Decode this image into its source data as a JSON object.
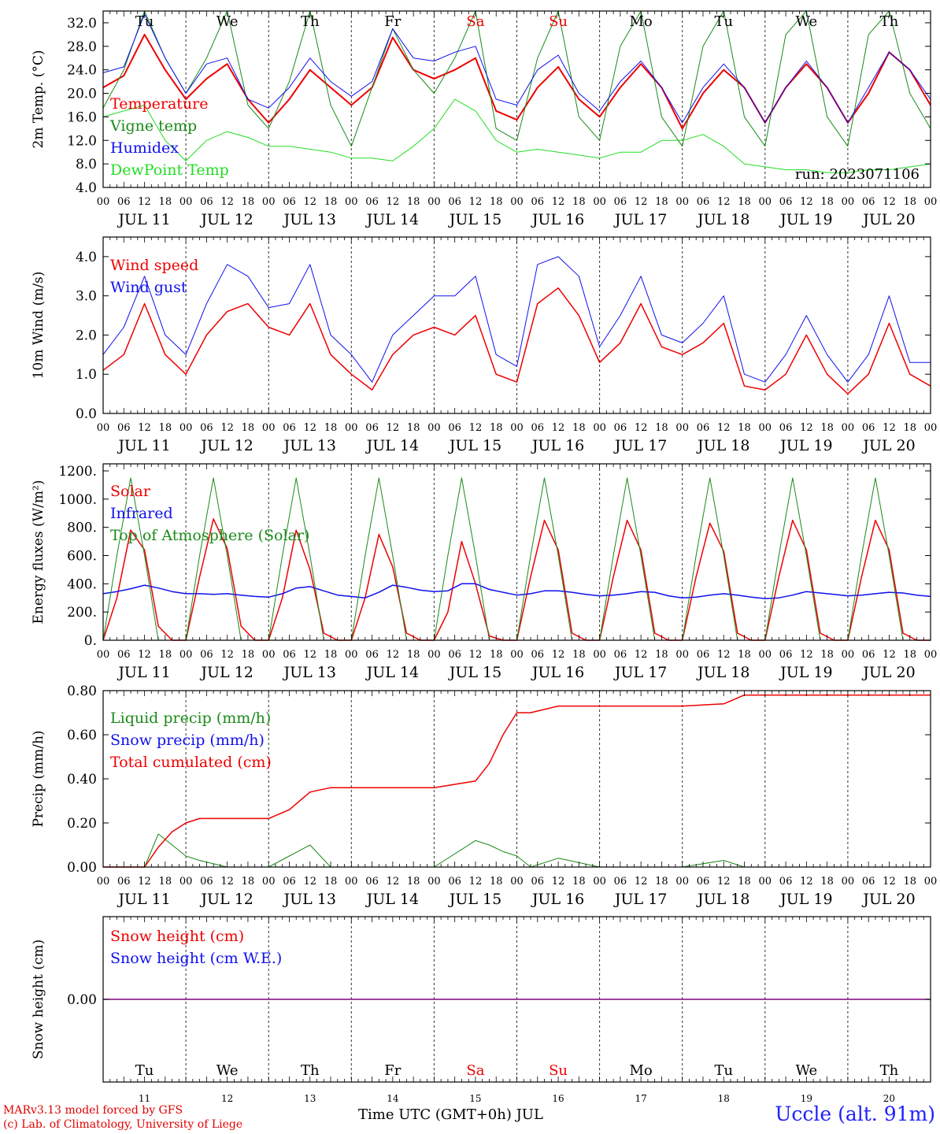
{
  "footer": {
    "model_line": "MARv3.13 model forced by GFS",
    "credit_line": "(c) Lab. of Climatology, University of Liege",
    "time_label": "Time UTC (GMT+0h) JUL",
    "station": "Uccle (alt. 91m)"
  },
  "colors": {
    "red": "#ee0000",
    "green": "#1a8a1a",
    "blue": "#1010ee",
    "lightgreen": "#22dd22",
    "purple": "#800080"
  },
  "days": [
    {
      "label": "JUL 11",
      "wd": "Tu",
      "num": "11",
      "weekend": false
    },
    {
      "label": "JUL 12",
      "wd": "We",
      "num": "12",
      "weekend": false
    },
    {
      "label": "JUL 13",
      "wd": "Th",
      "num": "13",
      "weekend": false
    },
    {
      "label": "JUL 14",
      "wd": "Fr",
      "num": "14",
      "weekend": false
    },
    {
      "label": "JUL 15",
      "wd": "Sa",
      "num": "15",
      "weekend": true
    },
    {
      "label": "JUL 16",
      "wd": "Su",
      "num": "16",
      "weekend": true
    },
    {
      "label": "JUL 17",
      "wd": "Mo",
      "num": "17",
      "weekend": false
    },
    {
      "label": "JUL 18",
      "wd": "Tu",
      "num": "18",
      "weekend": false
    },
    {
      "label": "JUL 19",
      "wd": "We",
      "num": "19",
      "weekend": false
    },
    {
      "label": "JUL 20",
      "wd": "Th",
      "num": "20",
      "weekend": false
    }
  ],
  "hour_ticks": [
    "00",
    "06",
    "12",
    "18"
  ],
  "chart_data": [
    {
      "type": "line",
      "ylabel": "2m Temp. (°C)",
      "ylim": [
        4,
        34
      ],
      "yticks": [
        "4.0",
        "8.0",
        "12.0",
        "16.0",
        "20.0",
        "24.0",
        "28.0",
        "32.0"
      ],
      "ytick_values": [
        4,
        8,
        12,
        16,
        20,
        24,
        28,
        32
      ],
      "run_label": "run: 2023071106",
      "show_weekdays": true,
      "x": [
        0,
        6,
        12,
        18,
        24,
        30,
        36,
        42,
        48,
        54,
        60,
        66,
        72,
        78,
        84,
        90,
        96,
        102,
        108,
        114,
        120,
        126,
        132,
        138,
        144,
        150,
        156,
        162,
        168,
        174,
        180,
        186,
        192,
        198,
        204,
        210,
        216,
        222,
        228,
        234,
        240
      ],
      "series": [
        {
          "name": "Temperature",
          "color": "red",
          "width": 2,
          "values": [
            21,
            23,
            30,
            24,
            19,
            22.5,
            25,
            19,
            15,
            19,
            24,
            21,
            18,
            21,
            29.5,
            24,
            22.5,
            24,
            26,
            17,
            15.5,
            21,
            24.5,
            19,
            16,
            21,
            25,
            21,
            14,
            20,
            24,
            21,
            15,
            21,
            25,
            21,
            15,
            20,
            27,
            24,
            18
          ]
        },
        {
          "name": "Vigne temp",
          "color": "green",
          "width": 1,
          "values": [
            17.5,
            24,
            34,
            26,
            20,
            26,
            34,
            18,
            14,
            22,
            34,
            18,
            11,
            21,
            31,
            24,
            20,
            26,
            34,
            14,
            12,
            26,
            34,
            16,
            12,
            28,
            34,
            16,
            11,
            28,
            34,
            16,
            11,
            30,
            34,
            16,
            11,
            30,
            34,
            20,
            14
          ]
        },
        {
          "name": "Humidex",
          "color": "blue",
          "width": 1,
          "values": [
            23.5,
            24.5,
            33.5,
            26,
            20,
            25,
            26,
            19,
            17.5,
            21,
            26,
            22,
            19.5,
            22,
            31,
            26,
            25.5,
            27,
            28,
            19,
            18,
            24,
            26.5,
            20,
            17,
            22,
            25.5,
            21,
            15,
            21,
            25,
            21,
            15,
            21,
            25.5,
            21,
            15,
            21,
            27,
            24,
            19
          ]
        },
        {
          "name": "DewPoint Temp",
          "color": "lightgreen",
          "width": 1,
          "values": [
            16,
            17,
            18,
            12,
            8.5,
            12,
            13.5,
            12.5,
            11,
            11,
            10.5,
            10,
            9,
            9,
            8.5,
            11,
            14,
            19,
            17,
            12,
            10,
            10.5,
            10,
            9.5,
            9,
            10,
            10,
            12,
            12,
            13,
            11,
            8,
            7.5,
            7,
            7,
            6.5,
            6.5,
            7,
            7,
            7.5,
            8
          ]
        }
      ]
    },
    {
      "type": "line",
      "ylabel": "10m Wind (m/s)",
      "ylim": [
        0,
        4.5
      ],
      "yticks": [
        "0.0",
        "1.0",
        "2.0",
        "3.0",
        "4.0"
      ],
      "ytick_values": [
        0,
        1,
        2,
        3,
        4
      ],
      "show_weekdays": false,
      "x": [
        0,
        6,
        12,
        18,
        24,
        30,
        36,
        42,
        48,
        54,
        60,
        66,
        72,
        78,
        84,
        90,
        96,
        102,
        108,
        114,
        120,
        126,
        132,
        138,
        144,
        150,
        156,
        162,
        168,
        174,
        180,
        186,
        192,
        198,
        204,
        210,
        216,
        222,
        228,
        234,
        240
      ],
      "series": [
        {
          "name": "Wind speed",
          "color": "red",
          "width": 1.5,
          "values": [
            1.1,
            1.5,
            2.8,
            1.5,
            1.0,
            2.0,
            2.6,
            2.8,
            2.2,
            2.0,
            2.8,
            1.5,
            1.0,
            0.6,
            1.5,
            2.0,
            2.2,
            2.0,
            2.5,
            1.0,
            0.8,
            2.8,
            3.2,
            2.5,
            1.3,
            1.8,
            2.8,
            1.7,
            1.5,
            1.8,
            2.3,
            0.7,
            0.6,
            1.0,
            2.0,
            1.0,
            0.5,
            1.0,
            2.3,
            1.0,
            0.7
          ]
        },
        {
          "name": "Wind gust",
          "color": "blue",
          "width": 1,
          "values": [
            1.5,
            2.2,
            3.5,
            2.0,
            1.5,
            2.8,
            3.8,
            3.5,
            2.7,
            2.8,
            3.8,
            2.0,
            1.5,
            0.8,
            2.0,
            2.5,
            3.0,
            3.0,
            3.5,
            1.5,
            1.2,
            3.8,
            4.0,
            3.5,
            1.7,
            2.5,
            3.5,
            2.0,
            1.8,
            2.3,
            3.0,
            1.0,
            0.8,
            1.5,
            2.5,
            1.5,
            0.8,
            1.5,
            3.0,
            1.3,
            1.3
          ]
        }
      ]
    },
    {
      "type": "line",
      "ylabel": "Energy fluxes (W/m²)",
      "ylim": [
        0,
        1250
      ],
      "yticks": [
        "0.",
        "200.",
        "400.",
        "600.",
        "800.",
        "1000.",
        "1200."
      ],
      "ytick_values": [
        0,
        200,
        400,
        600,
        800,
        1000,
        1200
      ],
      "show_weekdays": false,
      "x": [
        0,
        4,
        8,
        12,
        16,
        20,
        24,
        28,
        32,
        36,
        40,
        44,
        48,
        52,
        56,
        60,
        64,
        68,
        72,
        76,
        80,
        84,
        88,
        92,
        96,
        100,
        104,
        108,
        112,
        116,
        120,
        124,
        128,
        132,
        136,
        140,
        144,
        148,
        152,
        156,
        160,
        164,
        168,
        172,
        176,
        180,
        184,
        188,
        192,
        196,
        200,
        204,
        208,
        212,
        216,
        220,
        224,
        228,
        232,
        236,
        240
      ],
      "series": [
        {
          "name": "Solar",
          "color": "red",
          "width": 1.5,
          "values": [
            0,
            300,
            780,
            640,
            100,
            0,
            0,
            450,
            860,
            650,
            100,
            0,
            0,
            300,
            780,
            500,
            50,
            0,
            0,
            300,
            750,
            520,
            50,
            0,
            0,
            200,
            700,
            400,
            30,
            0,
            0,
            450,
            850,
            640,
            50,
            0,
            0,
            450,
            850,
            640,
            50,
            0,
            0,
            450,
            830,
            630,
            50,
            0,
            0,
            450,
            850,
            640,
            50,
            0,
            0,
            450,
            850,
            640,
            50,
            0,
            0
          ]
        },
        {
          "name": "Infrared",
          "color": "blue",
          "width": 1.5,
          "values": [
            330,
            345,
            365,
            390,
            370,
            345,
            330,
            330,
            325,
            330,
            320,
            310,
            305,
            330,
            370,
            380,
            350,
            320,
            310,
            300,
            340,
            390,
            375,
            355,
            345,
            350,
            400,
            400,
            360,
            340,
            320,
            330,
            350,
            350,
            340,
            325,
            315,
            320,
            330,
            345,
            340,
            315,
            300,
            305,
            320,
            330,
            320,
            305,
            295,
            300,
            320,
            345,
            335,
            325,
            315,
            320,
            330,
            340,
            335,
            320,
            310
          ]
        },
        {
          "name": "Top of Atmosphere (Solar)",
          "color": "green",
          "width": 1,
          "values": [
            0,
            600,
            1150,
            600,
            0,
            0,
            0,
            600,
            1150,
            600,
            0,
            0,
            0,
            600,
            1150,
            600,
            0,
            0,
            0,
            600,
            1150,
            600,
            0,
            0,
            0,
            600,
            1150,
            600,
            0,
            0,
            0,
            600,
            1150,
            600,
            0,
            0,
            0,
            600,
            1150,
            600,
            0,
            0,
            0,
            600,
            1150,
            600,
            0,
            0,
            0,
            600,
            1150,
            600,
            0,
            0,
            0,
            600,
            1150,
            600,
            0,
            0,
            0
          ]
        }
      ]
    },
    {
      "type": "line",
      "ylabel": "Precip (mm/h)",
      "ylim": [
        0,
        0.8
      ],
      "yticks": [
        "0.00",
        "0.20",
        "0.40",
        "0.60",
        "0.80"
      ],
      "ytick_values": [
        0,
        0.2,
        0.4,
        0.6,
        0.8
      ],
      "show_weekdays": false,
      "x": [
        0,
        12,
        16,
        20,
        24,
        28,
        36,
        48,
        54,
        60,
        66,
        72,
        84,
        96,
        108,
        112,
        116,
        120,
        124,
        132,
        144,
        150,
        156,
        168,
        180,
        186,
        192,
        204,
        216,
        228,
        240
      ],
      "series": [
        {
          "name": "Liquid precip (mm/h)",
          "color": "green",
          "width": 1,
          "values": [
            0,
            0,
            0.15,
            0.1,
            0.05,
            0.03,
            0,
            0,
            0.05,
            0.1,
            0,
            0,
            0,
            0,
            0.12,
            0.1,
            0.07,
            0.05,
            0,
            0.04,
            0,
            0,
            0,
            0,
            0.03,
            0,
            0,
            0,
            0,
            0,
            0
          ]
        },
        {
          "name": "Snow precip (mm/h)",
          "color": "blue",
          "width": 1,
          "values": [
            0,
            0,
            0,
            0,
            0,
            0,
            0,
            0,
            0,
            0,
            0,
            0,
            0,
            0,
            0,
            0,
            0,
            0,
            0,
            0,
            0,
            0,
            0,
            0,
            0,
            0,
            0,
            0,
            0,
            0,
            0
          ]
        },
        {
          "name": "Total cumulated (cm)",
          "color": "red",
          "width": 1.5,
          "values": [
            0,
            0,
            0.09,
            0.16,
            0.2,
            0.22,
            0.22,
            0.22,
            0.26,
            0.34,
            0.36,
            0.36,
            0.36,
            0.36,
            0.39,
            0.47,
            0.6,
            0.7,
            0.7,
            0.73,
            0.73,
            0.73,
            0.73,
            0.73,
            0.74,
            0.78,
            0.78,
            0.78,
            0.78,
            0.78,
            0.78
          ]
        }
      ]
    },
    {
      "type": "line",
      "ylabel": "Snow height (cm)",
      "ylim": [
        -1,
        1
      ],
      "yticks": [
        "0.00"
      ],
      "ytick_values": [
        0
      ],
      "show_weekdays": false,
      "bottom_weekdays": true,
      "x": [
        0,
        240
      ],
      "series": [
        {
          "name": "Snow height (cm)",
          "color": "red",
          "width": 1,
          "values": [
            0,
            0
          ],
          "draw": false
        },
        {
          "name": "Snow height (cm W.E.)",
          "color": "blue",
          "width": 1,
          "values": [
            0,
            0
          ],
          "draw": false
        },
        {
          "color": "purple",
          "width": 1.5,
          "values": [
            0,
            0
          ]
        }
      ]
    }
  ]
}
